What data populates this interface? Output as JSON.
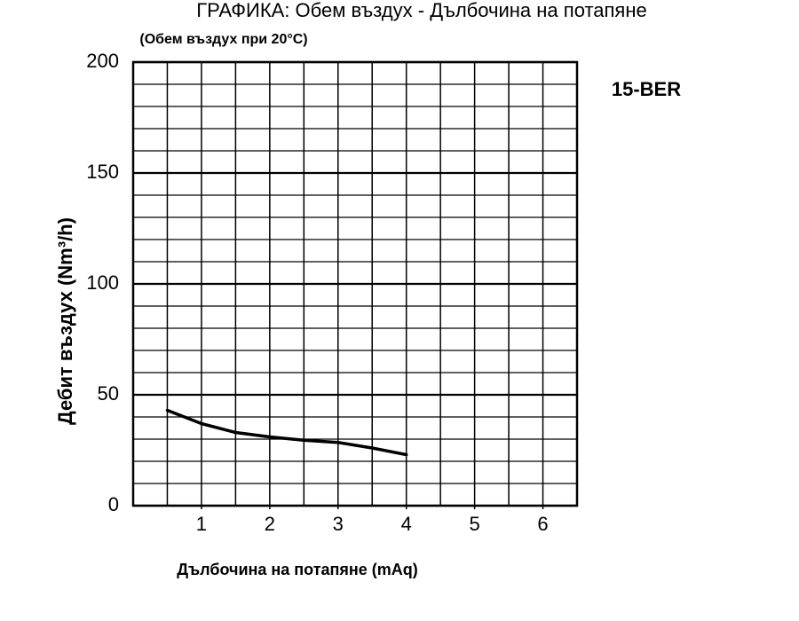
{
  "chart_data": {
    "type": "line",
    "title": "ГРАФИКА: Обем въздух - Дълбочина на потапяне",
    "subtitle": "(Обем въздух при 20°C)",
    "annotation": "15-BER",
    "x_label": "Дълбочина на потапяне (mAq)",
    "y_label": "Дебит въздух (Nm³/h)",
    "x": [
      0.5,
      1,
      1.5,
      2,
      2.5,
      3,
      3.5,
      4
    ],
    "values": [
      43,
      37,
      33,
      31,
      29.5,
      28.5,
      26,
      23
    ],
    "color": "#000000",
    "xlim": [
      0,
      6.5
    ],
    "xticks": [
      1,
      2,
      3,
      4,
      5,
      6
    ],
    "ylim": [
      0,
      200
    ],
    "yticks": [
      0,
      50,
      100,
      150,
      200
    ],
    "xgrid": [
      0,
      0.5,
      1,
      1.5,
      2,
      2.5,
      3,
      3.5,
      4,
      4.5,
      5,
      5.5,
      6,
      6.5
    ],
    "ygrid": [
      0,
      10,
      20,
      30,
      40,
      50,
      60,
      70,
      80,
      90,
      100,
      110,
      120,
      130,
      140,
      150,
      160,
      170,
      180,
      190,
      200
    ],
    "grid": true
  }
}
